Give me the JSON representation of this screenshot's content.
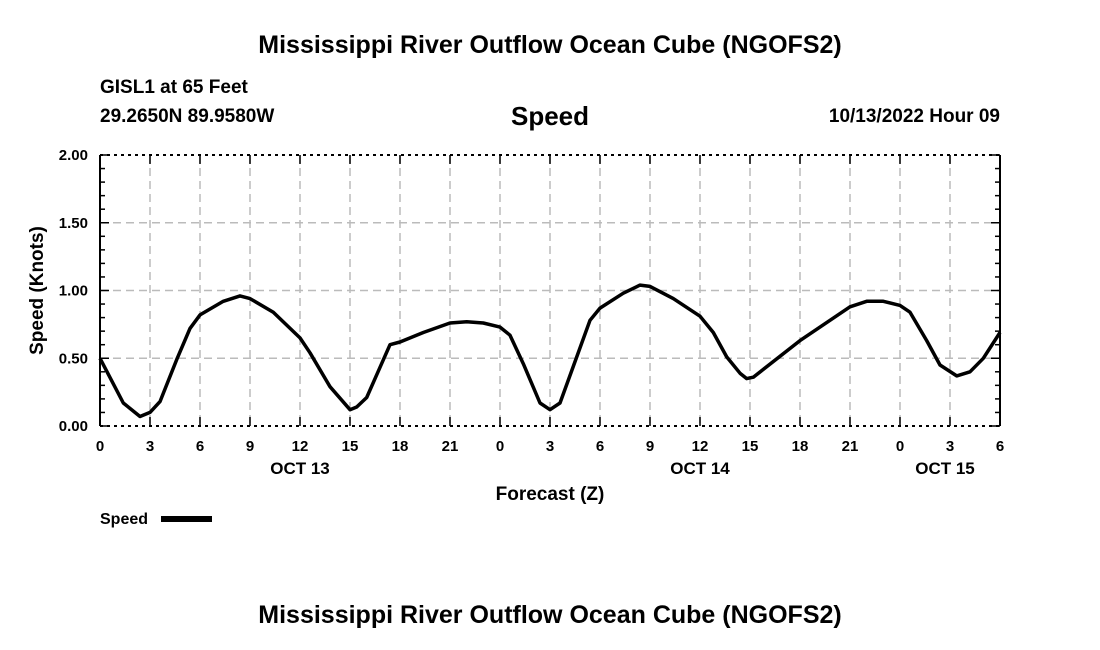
{
  "header": {
    "title": "Mississippi River Outflow Ocean Cube (NGOFS2)",
    "station": "GISL1 at 65 Feet",
    "coords": "29.2650N  89.9580W",
    "variable": "Speed",
    "datetime": "10/13/2022 Hour 09"
  },
  "footer": {
    "title": "Mississippi River Outflow Ocean Cube (NGOFS2)"
  },
  "chart_data": {
    "type": "line",
    "title": "Speed",
    "xlabel": "Forecast (Z)",
    "ylabel": "Speed (Knots)",
    "xlim": [
      0,
      54
    ],
    "ylim": [
      0,
      2
    ],
    "grid": true,
    "legend_position": "bottom-left",
    "xticks": [
      0,
      3,
      6,
      9,
      12,
      15,
      18,
      21,
      24,
      27,
      30,
      33,
      36,
      39,
      42,
      45,
      48,
      51,
      54
    ],
    "xtick_labels": [
      "0",
      "3",
      "6",
      "9",
      "12",
      "15",
      "18",
      "21",
      "0",
      "3",
      "6",
      "9",
      "12",
      "15",
      "18",
      "21",
      "0",
      "3",
      "6"
    ],
    "day_labels": [
      {
        "hour": 12,
        "label": "OCT 13"
      },
      {
        "hour": 36,
        "label": "OCT 14"
      },
      {
        "hour": 50.7,
        "label": "OCT 15"
      }
    ],
    "yticks": [
      0,
      0.5,
      1,
      1.5,
      2
    ],
    "ytick_labels": [
      "0.00",
      "0.50",
      "1.00",
      "1.50",
      "2.00"
    ],
    "series": [
      {
        "name": "Speed",
        "color": "#000000",
        "x": [
          0,
          1.4,
          2.4,
          3.0,
          3.6,
          4.6,
          5.4,
          6.0,
          7.4,
          8.4,
          9.0,
          10.4,
          12.0,
          12.6,
          13.8,
          15.0,
          15.4,
          16.0,
          17.4,
          18.0,
          19.4,
          21.0,
          22.0,
          23.0,
          24.0,
          24.6,
          25.4,
          26.4,
          27.0,
          27.6,
          28.4,
          29.4,
          30.0,
          31.4,
          32.4,
          33.0,
          34.4,
          36.0,
          36.8,
          37.6,
          38.4,
          38.8,
          39.2,
          42.0,
          45.0,
          46.0,
          47.0,
          48.0,
          48.6,
          49.6,
          50.4,
          51.4,
          52.2,
          53.0,
          54.0
        ],
        "y": [
          0.5,
          0.17,
          0.07,
          0.1,
          0.18,
          0.49,
          0.72,
          0.82,
          0.92,
          0.96,
          0.94,
          0.84,
          0.65,
          0.54,
          0.29,
          0.12,
          0.14,
          0.21,
          0.6,
          0.62,
          0.69,
          0.76,
          0.77,
          0.76,
          0.73,
          0.67,
          0.46,
          0.17,
          0.12,
          0.17,
          0.44,
          0.78,
          0.87,
          0.98,
          1.04,
          1.03,
          0.94,
          0.81,
          0.69,
          0.51,
          0.39,
          0.35,
          0.36,
          0.63,
          0.88,
          0.92,
          0.92,
          0.89,
          0.84,
          0.63,
          0.45,
          0.37,
          0.4,
          0.5,
          0.69
        ]
      }
    ]
  }
}
